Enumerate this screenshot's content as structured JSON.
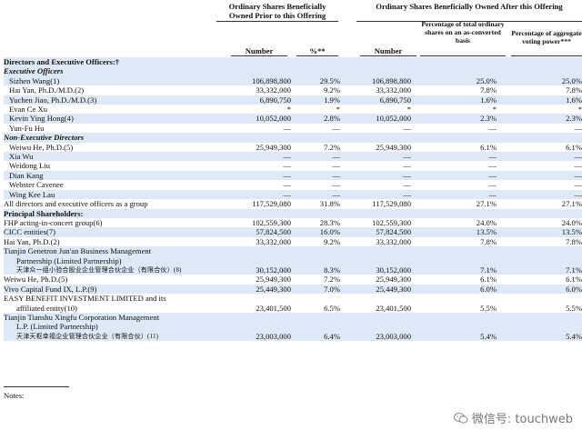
{
  "header": {
    "prior_group": "Ordinary Shares Beneficially Owned Prior to this Offering",
    "after_group": "Ordinary Shares Beneficially Owned After this Offering",
    "pct_total": "Percentage of total ordinary shares on an as-converted basis",
    "pct_voting": "Percentage of aggregate voting power***",
    "col_number1": "Number",
    "col_pct1": "%**",
    "col_number2": "Number"
  },
  "rows": [
    {
      "type": "section",
      "label": "Directors and Executive Officers:†",
      "shade": true
    },
    {
      "type": "subsection",
      "label": "Executive Officers",
      "shade": true
    },
    {
      "type": "data",
      "label": "Sizhen Wang(1)",
      "n1": "106,898,800",
      "p1": "29.5%",
      "n2": "106,898,800",
      "p2": "25.0%",
      "p3": "25.0%",
      "shade": true,
      "indent": 1
    },
    {
      "type": "data",
      "label": "Hai Yan, Ph.D./M.D.(2)",
      "n1": "33,332,000",
      "p1": "9.2%",
      "n2": "33,332,000",
      "p2": "7.8%",
      "p3": "7.8%",
      "shade": false,
      "indent": 1
    },
    {
      "type": "data",
      "label": "Yuchen Jiao, Ph.D./M.D.(3)",
      "n1": "6,890,750",
      "p1": "1.9%",
      "n2": "6,890,750",
      "p2": "1.6%",
      "p3": "1.6%",
      "shade": true,
      "indent": 1
    },
    {
      "type": "data",
      "label": "Evan Ce Xu",
      "n1": "*",
      "p1": "*",
      "n2": "*",
      "p2": "*",
      "p3": "*",
      "shade": false,
      "indent": 1
    },
    {
      "type": "data",
      "label": "Kevin Ying Hong(4)",
      "n1": "10,052,000",
      "p1": "2.8%",
      "n2": "10,052,000",
      "p2": "2.3%",
      "p3": "2.3%",
      "shade": true,
      "indent": 1
    },
    {
      "type": "data",
      "label": "Yun-Fu Hu",
      "n1": "—",
      "p1": "—",
      "n2": "—",
      "p2": "—",
      "p3": "—",
      "shade": false,
      "indent": 1
    },
    {
      "type": "subsection",
      "label": "Non-Executive Directors",
      "shade": true
    },
    {
      "type": "data",
      "label": "Weiwu He, Ph.D.(5)",
      "n1": "25,949,300",
      "p1": "7.2%",
      "n2": "25,949,300",
      "p2": "6.1%",
      "p3": "6.1%",
      "shade": false,
      "indent": 1
    },
    {
      "type": "data",
      "label": "Xia Wu",
      "n1": "—",
      "p1": "—",
      "n2": "—",
      "p2": "—",
      "p3": "—",
      "shade": true,
      "indent": 1
    },
    {
      "type": "data",
      "label": "Weidong Liu",
      "n1": "—",
      "p1": "—",
      "n2": "—",
      "p2": "—",
      "p3": "—",
      "shade": false,
      "indent": 1
    },
    {
      "type": "data",
      "label": "Dian Kang",
      "n1": "—",
      "p1": "—",
      "n2": "—",
      "p2": "—",
      "p3": "—",
      "shade": true,
      "indent": 1
    },
    {
      "type": "data",
      "label": "Webster Cavenee",
      "n1": "—",
      "p1": "—",
      "n2": "—",
      "p2": "—",
      "p3": "—",
      "shade": false,
      "indent": 1
    },
    {
      "type": "data",
      "label": "Wing Kee Lau",
      "n1": "—",
      "p1": "—",
      "n2": "—",
      "p2": "—",
      "p3": "—",
      "shade": true,
      "indent": 1
    },
    {
      "type": "data",
      "label": "All directors and executive officers as a group",
      "n1": "117,529,080",
      "p1": "31.8%",
      "n2": "117,529,080",
      "p2": "27.1%",
      "p3": "27.1%",
      "shade": false,
      "indent": 0
    },
    {
      "type": "section",
      "label": "Principal Shareholders:",
      "shade": true
    },
    {
      "type": "data",
      "label": "FHP acting-in-concert group(6)",
      "n1": "102,559,300",
      "p1": "28.3%",
      "n2": "102,559,300",
      "p2": "24.0%",
      "p3": "24.0%",
      "shade": false,
      "indent": 2
    },
    {
      "type": "data",
      "label": "CICC entities(7)",
      "n1": "57,824,500",
      "p1": "16.0%",
      "n2": "57,824,500",
      "p2": "13.5%",
      "p3": "13.5%",
      "shade": true,
      "indent": 2
    },
    {
      "type": "data",
      "label": "Hai Yan, Ph.D.(2)",
      "n1": "33,332,000",
      "p1": "9.2%",
      "n2": "33,332,000",
      "p2": "7.8%",
      "p3": "7.8%",
      "shade": false,
      "indent": 2
    },
    {
      "type": "label",
      "label": "Tianjin Genetron Jun'an Business Management",
      "shade": true,
      "indent": 2
    },
    {
      "type": "label",
      "label": "Partnership (Limited Partnership)",
      "shade": true,
      "indent": 3
    },
    {
      "type": "data",
      "label": "天津众一组小验合股业企业管理合伙企业（有限合伙）(8)",
      "n1": "30,152,000",
      "p1": "8.3%",
      "n2": "30,152,000",
      "p2": "7.1%",
      "p3": "7.1%",
      "shade": true,
      "indent": 3,
      "cn": true
    },
    {
      "type": "data",
      "label": "Weiwu He, Ph.D.(5)",
      "n1": "25,949,300",
      "p1": "7.2%",
      "n2": "25,949,300",
      "p2": "6.1%",
      "p3": "6.1%",
      "shade": false,
      "indent": 2
    },
    {
      "type": "data",
      "label": "Vivo Capital Fund IX, L.P.(9)",
      "n1": "25,449,300",
      "p1": "7.0%",
      "n2": "25,449,300",
      "p2": "6.0%",
      "p3": "6.0%",
      "shade": true,
      "indent": 2
    },
    {
      "type": "label",
      "label": "EASY BENEFIT INVESTMENT LIMITED and its",
      "shade": false,
      "indent": 2
    },
    {
      "type": "data",
      "label": "affiliated entity(10)",
      "n1": "23,401,500",
      "p1": "6.5%",
      "n2": "23,401,500",
      "p2": "5.5%",
      "p3": "5.5%",
      "shade": false,
      "indent": 3
    },
    {
      "type": "label",
      "label": "Tianjin Tianshu Xingfu Corporation Management",
      "shade": true,
      "indent": 2
    },
    {
      "type": "label",
      "label": "L.P. (Limited Partnership)",
      "shade": true,
      "indent": 3
    },
    {
      "type": "data",
      "label": "天津天枢幸福企业管理合伙企业（有限合伙）(11)",
      "n1": "23,003,000",
      "p1": "6.4%",
      "n2": "23,003,000",
      "p2": "5.4%",
      "p3": "5.4%",
      "shade": true,
      "indent": 3,
      "cn": true
    }
  ],
  "notes_label": "Notes:",
  "watermark": "微信号: touchweb"
}
